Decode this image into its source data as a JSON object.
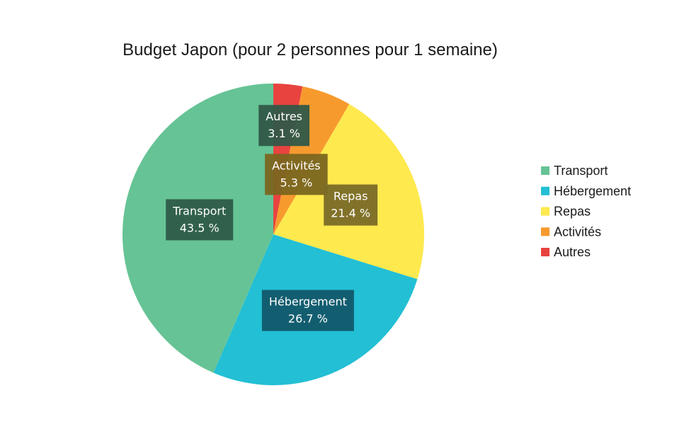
{
  "chart_data": {
    "type": "pie",
    "title": "Budget Japon (pour 2 personnes pour 1 semaine)",
    "legend_position": "right",
    "slices": [
      {
        "label": "Autres",
        "value": 3.1,
        "display": "3.1 %",
        "color": "#e8433f"
      },
      {
        "label": "Activités",
        "value": 5.3,
        "display": "5.3 %",
        "color": "#f79a2e"
      },
      {
        "label": "Repas",
        "value": 21.4,
        "display": "21.4 %",
        "color": "#fee94e"
      },
      {
        "label": "Hébergement",
        "value": 26.7,
        "display": "26.7 %",
        "color": "#23bfd4"
      },
      {
        "label": "Transport",
        "value": 43.5,
        "display": "43.5 %",
        "color": "#66c395"
      }
    ],
    "legend_order": [
      "Transport",
      "Hébergement",
      "Repas",
      "Activités",
      "Autres"
    ],
    "label_box_colors": {
      "Autres": "#305848",
      "Activités": "#7a661f",
      "Repas": "#7a6c27",
      "Hébergement": "#12586a",
      "Transport": "#2e5c48"
    }
  }
}
